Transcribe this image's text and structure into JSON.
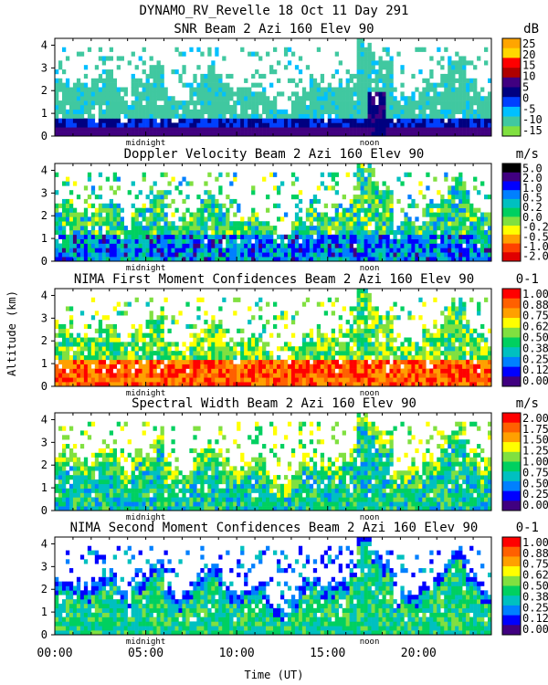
{
  "header": {
    "line1": "DYNAMO_RV_Revelle  18 Oct 11 Day 291"
  },
  "shared_axes": {
    "ylabel": "Altitude (km)",
    "xlabel": "Time (UT)",
    "x_range_hours": [
      0,
      24
    ],
    "x_ticks": [
      {
        "label": "00:00",
        "value": 0
      },
      {
        "label": "05:00",
        "value": 5
      },
      {
        "label": "10:00",
        "value": 10
      },
      {
        "label": "15:00",
        "value": 15
      },
      {
        "label": "20:00",
        "value": 20
      }
    ],
    "y_ticks": [
      "0",
      "1",
      "2",
      "3",
      "4"
    ],
    "y_range_km": [
      0,
      4.3
    ],
    "markers": [
      {
        "label": "midnight",
        "value": 5.0
      },
      {
        "label": "noon",
        "value": 17.3
      }
    ]
  },
  "chart_data": [
    {
      "type": "heatmap",
      "title": "SNR Beam 2 Azi 160 Elev 90",
      "unit": "dB",
      "colorbar_labels": [
        "25",
        "20",
        "15",
        "10",
        "5",
        "0",
        "-5",
        "-10",
        "-15"
      ],
      "colorbar_colors": [
        "#ffa500",
        "#ffd700",
        "#ff0000",
        "#b00000",
        "#400080",
        "#000080",
        "#0040ff",
        "#00c0ff",
        "#40c8a0",
        "#80e040"
      ],
      "field": "snr"
    },
    {
      "type": "heatmap",
      "title": "Doppler Velocity Beam 2 Azi 160 Elev 90",
      "unit": "m/s",
      "colorbar_labels": [
        "5.0",
        "2.0",
        "1.0",
        "0.5",
        "0.2",
        "0.0",
        "-0.2",
        "-0.5",
        "-1.0",
        "-2.0"
      ],
      "colorbar_colors": [
        "#000000",
        "#400080",
        "#0000ff",
        "#0080ff",
        "#00c0c0",
        "#00d060",
        "#80e040",
        "#ffff00",
        "#ffa000",
        "#ff4000",
        "#e00000"
      ],
      "field": "velocity"
    },
    {
      "type": "heatmap",
      "title": "NIMA First Moment Confidences Beam 2 Azi 160 Elev 90",
      "unit": "0-1",
      "colorbar_labels": [
        "1.00",
        "0.88",
        "0.75",
        "0.62",
        "0.50",
        "0.38",
        "0.25",
        "0.12",
        "0.00"
      ],
      "colorbar_colors": [
        "#ff0000",
        "#ff6000",
        "#ffa000",
        "#ffff00",
        "#80e040",
        "#00d060",
        "#00c0c0",
        "#0080ff",
        "#0000ff",
        "#400080"
      ],
      "field": "conf1"
    },
    {
      "type": "heatmap",
      "title": "Spectral Width Beam 2 Azi 160 Elev 90",
      "unit": "m/s",
      "colorbar_labels": [
        "2.00",
        "1.75",
        "1.50",
        "1.25",
        "1.00",
        "0.75",
        "0.50",
        "0.25",
        "0.00"
      ],
      "colorbar_colors": [
        "#ff0000",
        "#ff6000",
        "#ffa000",
        "#ffff00",
        "#80e040",
        "#00d060",
        "#00c0c0",
        "#0080ff",
        "#0000ff",
        "#400080"
      ],
      "field": "width"
    },
    {
      "type": "heatmap",
      "title": "NIMA Second Moment Confidences Beam 2 Azi 160 Elev 90",
      "unit": "0-1",
      "colorbar_labels": [
        "1.00",
        "0.88",
        "0.75",
        "0.62",
        "0.50",
        "0.38",
        "0.25",
        "0.12",
        "0.00"
      ],
      "colorbar_colors": [
        "#ff0000",
        "#ff6000",
        "#ffa000",
        "#ffff00",
        "#80e040",
        "#00d060",
        "#00c0c0",
        "#0080ff",
        "#0000ff",
        "#400080"
      ],
      "field": "conf2"
    }
  ]
}
